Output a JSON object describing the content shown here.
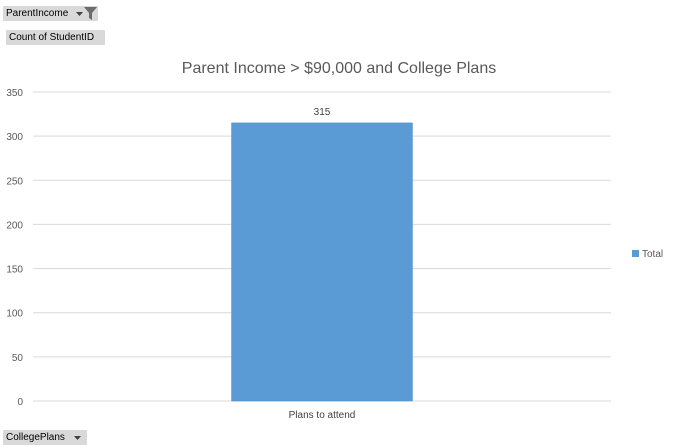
{
  "filters": {
    "parent_income_label": "ParentIncome",
    "count_label": "Count of StudentID",
    "college_plans_label": "CollegePlans"
  },
  "colors": {
    "bar": "#5b9bd5",
    "bar_border": "#4a89c8",
    "grid": "#d9d9d9",
    "text": "#595959",
    "field_bg": "#d9d9d9"
  },
  "chart_data": {
    "type": "bar",
    "title": "Parent Income > $90,000 and College Plans",
    "categories": [
      "Plans to attend"
    ],
    "series": [
      {
        "name": "Total",
        "values": [
          315
        ]
      }
    ],
    "data_labels": [
      "315"
    ],
    "ylim": [
      0,
      350
    ],
    "yticks": [
      0,
      50,
      100,
      150,
      200,
      250,
      300,
      350
    ],
    "grid": true,
    "legend": "right"
  }
}
